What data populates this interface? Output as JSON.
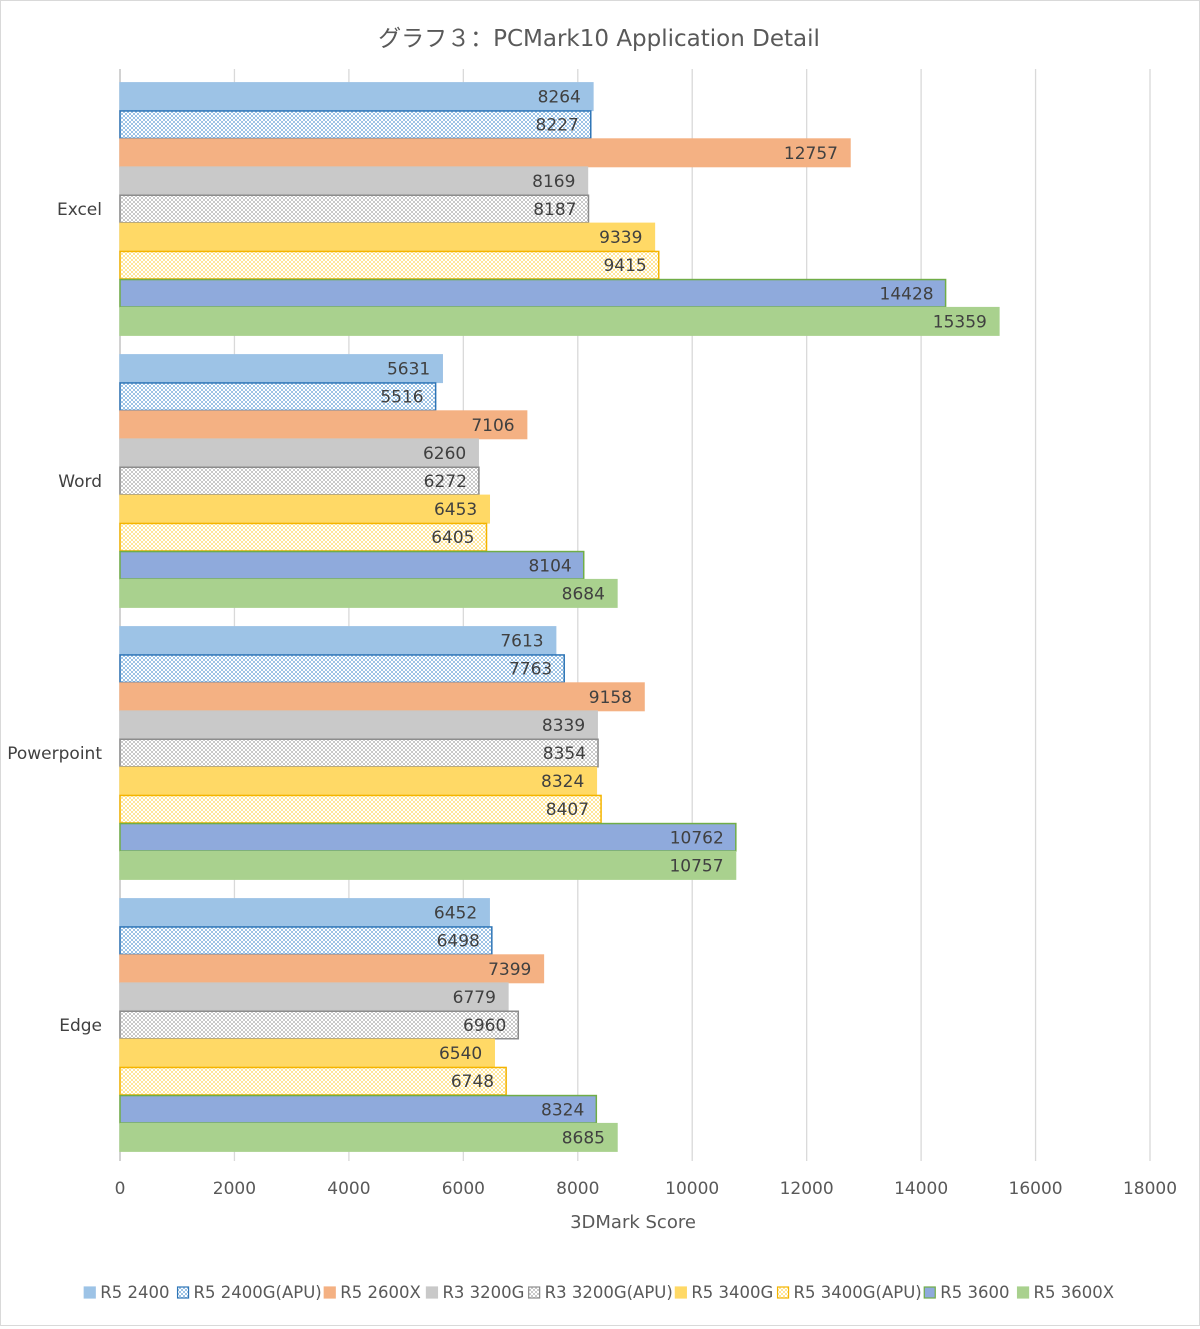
{
  "chart_data": {
    "type": "bar",
    "orientation": "horizontal",
    "title": "グラフ３：PCMark10 Application Detail",
    "xlabel": "3DMark Score",
    "ylabel": "",
    "xlim": [
      0,
      18000
    ],
    "x_ticks": [
      0,
      2000,
      4000,
      6000,
      8000,
      10000,
      12000,
      14000,
      16000,
      18000
    ],
    "grid": "vertical",
    "legend_position": "bottom",
    "categories": [
      "Excel",
      "Word",
      "Powerpoint",
      "Edge"
    ],
    "series": [
      {
        "name": "R5 2400",
        "values": [
          8264,
          5631,
          7613,
          6452
        ],
        "color": "#9dc3e6",
        "pattern": "solid",
        "border": "#9dc3e6"
      },
      {
        "name": "R5 2400G(APU)",
        "values": [
          8227,
          5516,
          7763,
          6498
        ],
        "color": "#9dc3e6",
        "pattern": "dots",
        "border": "#2e75b6"
      },
      {
        "name": "R5 2600X",
        "values": [
          12757,
          7106,
          9158,
          7399
        ],
        "color": "#f4b183",
        "pattern": "solid",
        "border": "#f4b183"
      },
      {
        "name": "R3 3200G",
        "values": [
          8169,
          6260,
          8339,
          6779
        ],
        "color": "#c9c9c9",
        "pattern": "solid",
        "border": "#c9c9c9"
      },
      {
        "name": "R3 3200G(APU)",
        "values": [
          8187,
          6272,
          8354,
          6960
        ],
        "color": "#c9c9c9",
        "pattern": "dots",
        "border": "#8c8c8c"
      },
      {
        "name": "R5 3400G",
        "values": [
          9339,
          6453,
          8324,
          6540
        ],
        "color": "#ffd966",
        "pattern": "solid",
        "border": "#ffd966"
      },
      {
        "name": "R5 3400G(APU)",
        "values": [
          9415,
          6405,
          8407,
          6748
        ],
        "color": "#ffe699",
        "pattern": "dots",
        "border": "#f4b400"
      },
      {
        "name": "R5 3600",
        "values": [
          14428,
          8104,
          10762,
          8324
        ],
        "color": "#8faadc",
        "pattern": "solid",
        "border": "#70ad47"
      },
      {
        "name": "R5 3600X",
        "values": [
          15359,
          8684,
          10757,
          8685
        ],
        "color": "#a9d18e",
        "pattern": "solid",
        "border": "#a9d18e"
      }
    ]
  }
}
